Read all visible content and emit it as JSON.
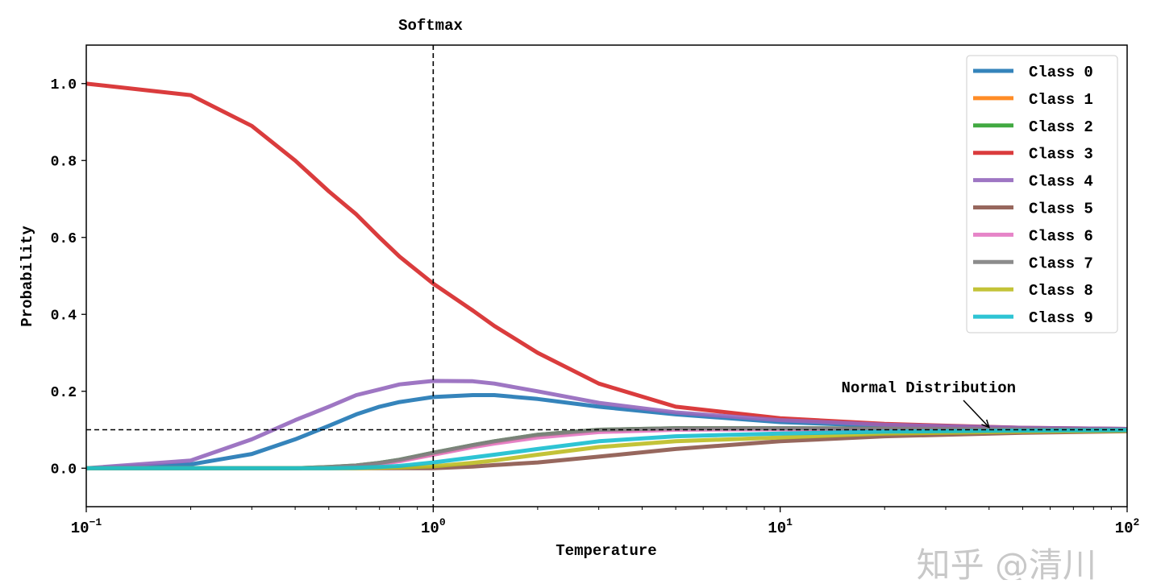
{
  "chart_data": {
    "type": "line",
    "title": "Softmax",
    "xlabel": "Temperature",
    "ylabel": "Probability",
    "xscale": "log",
    "xlim": [
      0.1,
      100
    ],
    "ylim": [
      -0.1,
      1.1
    ],
    "xticks": [
      {
        "base": "10",
        "exp": "−1",
        "value": 0.1
      },
      {
        "base": "10",
        "exp": "0",
        "value": 1
      },
      {
        "base": "10",
        "exp": "1",
        "value": 10
      },
      {
        "base": "10",
        "exp": "2",
        "value": 100
      }
    ],
    "yticks": [
      {
        "label": "0.0",
        "value": 0
      },
      {
        "label": "0.2",
        "value": 0.2
      },
      {
        "label": "0.4",
        "value": 0.4
      },
      {
        "label": "0.6",
        "value": 0.6
      },
      {
        "label": "0.8",
        "value": 0.8
      },
      {
        "label": "1.0",
        "value": 1.0
      }
    ],
    "grid": false,
    "legend_position": "top-right",
    "x": [
      0.1,
      0.2,
      0.3,
      0.4,
      0.5,
      0.6,
      0.7,
      0.8,
      1.0,
      1.3,
      1.5,
      2,
      3,
      5,
      10,
      20,
      50,
      100
    ],
    "series": [
      {
        "name": "Class 0",
        "color": "#1f77b4",
        "values": [
          0,
          0.01,
          0.037,
          0.075,
          0.11,
          0.14,
          0.16,
          0.172,
          0.185,
          0.19,
          0.19,
          0.18,
          0.16,
          0.14,
          0.12,
          0.11,
          0.104,
          0.102
        ]
      },
      {
        "name": "Class 1",
        "color": "#ff7f0e",
        "values": [
          0,
          0,
          0,
          0,
          0.002,
          0.006,
          0.012,
          0.02,
          0.037,
          0.058,
          0.068,
          0.085,
          0.099,
          0.103,
          0.103,
          0.102,
          0.101,
          0.1
        ]
      },
      {
        "name": "Class 2",
        "color": "#2ca02c",
        "values": [
          0,
          0,
          0,
          0,
          0.003,
          0.007,
          0.014,
          0.022,
          0.04,
          0.06,
          0.07,
          0.087,
          0.1,
          0.104,
          0.104,
          0.103,
          0.101,
          0.1
        ]
      },
      {
        "name": "Class 3",
        "color": "#d62728",
        "values": [
          1.0,
          0.97,
          0.89,
          0.8,
          0.72,
          0.66,
          0.6,
          0.55,
          0.48,
          0.41,
          0.37,
          0.3,
          0.22,
          0.16,
          0.13,
          0.115,
          0.105,
          0.102
        ]
      },
      {
        "name": "Class 4",
        "color": "#9467bd",
        "values": [
          0,
          0.02,
          0.075,
          0.125,
          0.16,
          0.19,
          0.205,
          0.218,
          0.227,
          0.226,
          0.22,
          0.2,
          0.17,
          0.145,
          0.125,
          0.113,
          0.105,
          0.102
        ]
      },
      {
        "name": "Class 5",
        "color": "#8c564b",
        "values": [
          0,
          0,
          0,
          0,
          0,
          0,
          0,
          0,
          0,
          0.004,
          0.008,
          0.015,
          0.03,
          0.05,
          0.07,
          0.083,
          0.092,
          0.096
        ]
      },
      {
        "name": "Class 6",
        "color": "#e377c2",
        "values": [
          0,
          0,
          0,
          0,
          0.002,
          0.005,
          0.011,
          0.018,
          0.035,
          0.055,
          0.064,
          0.08,
          0.094,
          0.1,
          0.101,
          0.101,
          0.1,
          0.1
        ]
      },
      {
        "name": "Class 7",
        "color": "#7f7f7f",
        "values": [
          0,
          0,
          0,
          0,
          0.003,
          0.007,
          0.014,
          0.022,
          0.04,
          0.06,
          0.07,
          0.087,
          0.1,
          0.104,
          0.104,
          0.103,
          0.101,
          0.1
        ]
      },
      {
        "name": "Class 8",
        "color": "#bcbd22",
        "values": [
          0,
          0,
          0,
          0,
          0,
          0,
          0.001,
          0.002,
          0.005,
          0.014,
          0.02,
          0.035,
          0.055,
          0.07,
          0.08,
          0.09,
          0.095,
          0.097
        ]
      },
      {
        "name": "Class 9",
        "color": "#17becf",
        "values": [
          0,
          0,
          0,
          0,
          0,
          0.001,
          0.003,
          0.006,
          0.015,
          0.028,
          0.035,
          0.05,
          0.07,
          0.083,
          0.09,
          0.095,
          0.098,
          0.099
        ]
      }
    ],
    "reference_lines": {
      "vertical_x": 1,
      "horizontal_y": 0.1
    },
    "annotation": {
      "text": "Normal Distribution",
      "arrow_to": {
        "x": 40,
        "y": 0.1
      },
      "text_at": {
        "x": 15,
        "y": 0.21
      }
    }
  },
  "watermark": "知乎 @清川"
}
